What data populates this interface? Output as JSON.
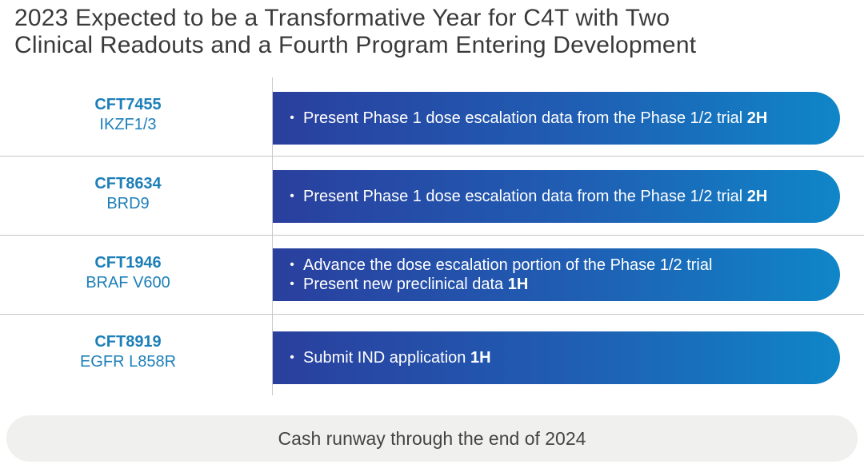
{
  "title": {
    "line1": "2023 Expected to be a Transformative Year for C4T with Two",
    "line2": "Clinical Readouts and a Fourth Program Entering Development"
  },
  "programs": [
    {
      "code": "CFT7455",
      "target": "IKZF1/3",
      "bullets": [
        {
          "text": "Present Phase 1 dose escalation data from the Phase 1/2 trial ",
          "timing": "2H"
        }
      ]
    },
    {
      "code": "CFT8634",
      "target": "BRD9",
      "bullets": [
        {
          "text": "Present Phase 1 dose escalation data from the Phase 1/2 trial ",
          "timing": "2H"
        }
      ]
    },
    {
      "code": "CFT1946",
      "target": "BRAF V600",
      "bullets": [
        {
          "text": "Advance the dose escalation portion of the Phase 1/2 trial",
          "timing": ""
        },
        {
          "text": "Present new preclinical data ",
          "timing": "1H"
        }
      ]
    },
    {
      "code": "CFT8919",
      "target": "EGFR L858R",
      "bullets": [
        {
          "text": "Submit IND application ",
          "timing": "1H"
        }
      ]
    }
  ],
  "footer": "Cash runway through the end of 2024"
}
